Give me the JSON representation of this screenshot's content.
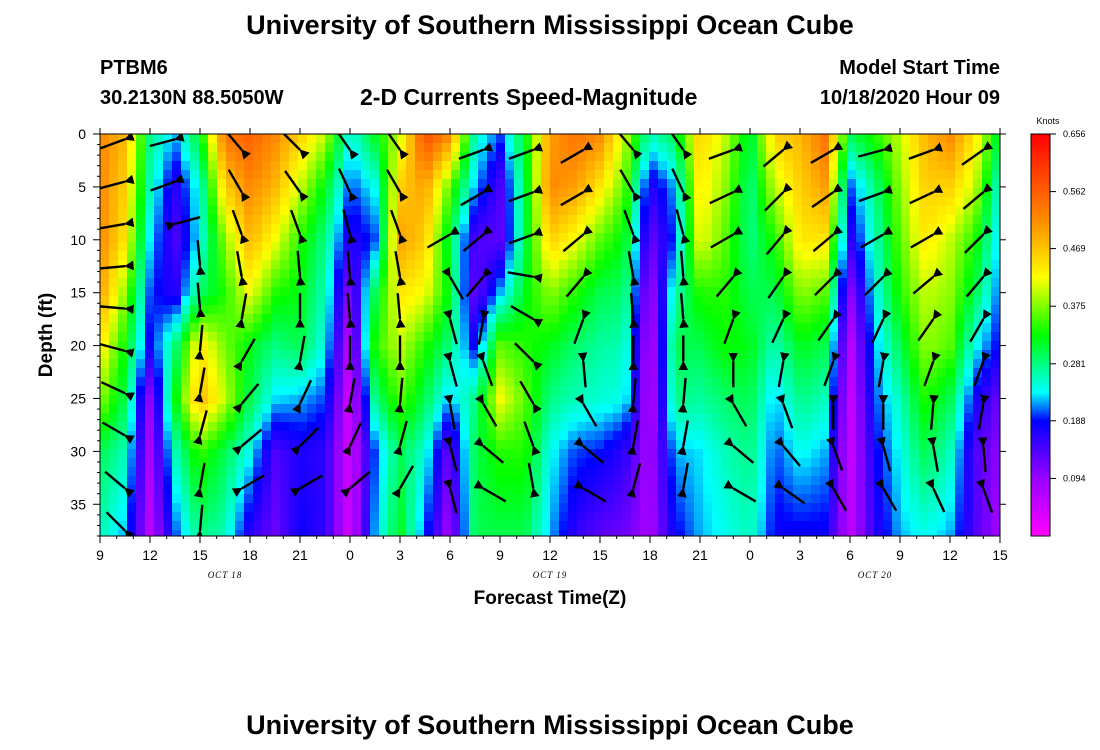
{
  "page": {
    "title_top": "University of Southern Mississippi Ocean Cube",
    "title_bottom": "University of Southern Mississippi Ocean Cube",
    "station": "PTBM6",
    "coords": "30.2130N 88.5050W",
    "plot_title": "2-D Currents Speed-Magnitude",
    "model_label": "Model Start Time",
    "model_time": "10/18/2020 Hour 09"
  },
  "chart_data": {
    "type": "heatmap",
    "title": "2-D Currents Speed-Magnitude",
    "xlabel": "Forecast Time(Z)",
    "ylabel": "Depth (ft)",
    "x_ticks": [
      "9",
      "12",
      "15",
      "18",
      "21",
      "0",
      "3",
      "6",
      "9",
      "12",
      "15",
      "18",
      "21",
      "0",
      "3",
      "6",
      "9",
      "12",
      "15"
    ],
    "x_range_hours": [
      0,
      54
    ],
    "date_labels": [
      {
        "text": "OCT 18",
        "hour": 7.5
      },
      {
        "text": "OCT 19",
        "hour": 27
      },
      {
        "text": "OCT 20",
        "hour": 46.5
      }
    ],
    "y_ticks": [
      0,
      5,
      10,
      15,
      20,
      25,
      30,
      35
    ],
    "ylim": [
      0,
      38
    ],
    "y_inverted": true,
    "colorbar": {
      "label": "Knots",
      "min": 0,
      "max": 0.656,
      "ticks": [
        0.656,
        0.562,
        0.469,
        0.375,
        0.281,
        0.188,
        0.094
      ]
    },
    "field_columns": [
      {
        "hour": 0.0,
        "speeds": [
          0.52,
          0.52,
          0.52,
          0.5,
          0.44,
          0.38,
          0.3,
          0.26
        ]
      },
      {
        "hour": 1.5,
        "speeds": [
          0.48,
          0.46,
          0.44,
          0.38,
          0.33,
          0.3,
          0.26,
          0.22
        ]
      },
      {
        "hour": 3.0,
        "speeds": [
          0.28,
          0.26,
          0.23,
          0.2,
          0.18,
          0.1,
          0.08,
          0.06
        ]
      },
      {
        "hour": 4.5,
        "speeds": [
          0.22,
          0.16,
          0.14,
          0.16,
          0.28,
          0.32,
          0.26,
          0.2
        ]
      },
      {
        "hour": 6.0,
        "speeds": [
          0.32,
          0.25,
          0.24,
          0.29,
          0.44,
          0.48,
          0.35,
          0.28
        ]
      },
      {
        "hour": 7.5,
        "speeds": [
          0.54,
          0.46,
          0.38,
          0.34,
          0.37,
          0.4,
          0.3,
          0.26
        ]
      },
      {
        "hour": 9.0,
        "speeds": [
          0.56,
          0.52,
          0.48,
          0.42,
          0.32,
          0.3,
          0.24,
          0.16
        ]
      },
      {
        "hour": 10.5,
        "speeds": [
          0.52,
          0.48,
          0.42,
          0.34,
          0.28,
          0.23,
          0.14,
          0.12
        ]
      },
      {
        "hour": 12.0,
        "speeds": [
          0.46,
          0.4,
          0.34,
          0.32,
          0.3,
          0.22,
          0.17,
          0.18
        ]
      },
      {
        "hour": 13.5,
        "speeds": [
          0.4,
          0.32,
          0.28,
          0.26,
          0.24,
          0.2,
          0.16,
          0.16
        ]
      },
      {
        "hour": 15.0,
        "speeds": [
          0.24,
          0.2,
          0.16,
          0.1,
          0.06,
          0.04,
          0.04,
          0.04
        ]
      },
      {
        "hour": 16.5,
        "speeds": [
          0.32,
          0.24,
          0.2,
          0.3,
          0.34,
          0.28,
          0.2,
          0.22
        ]
      },
      {
        "hour": 18.0,
        "speeds": [
          0.4,
          0.46,
          0.5,
          0.44,
          0.4,
          0.36,
          0.3,
          0.32
        ]
      },
      {
        "hour": 19.5,
        "speeds": [
          0.58,
          0.5,
          0.46,
          0.42,
          0.34,
          0.3,
          0.25,
          0.2
        ]
      },
      {
        "hour": 21.0,
        "speeds": [
          0.52,
          0.36,
          0.3,
          0.32,
          0.28,
          0.22,
          0.12,
          0.08
        ]
      },
      {
        "hour": 22.5,
        "speeds": [
          0.26,
          0.22,
          0.14,
          0.12,
          0.18,
          0.28,
          0.3,
          0.3
        ]
      },
      {
        "hour": 24.0,
        "speeds": [
          0.2,
          0.14,
          0.13,
          0.22,
          0.36,
          0.42,
          0.34,
          0.3
        ]
      },
      {
        "hour": 25.5,
        "speeds": [
          0.32,
          0.3,
          0.3,
          0.32,
          0.34,
          0.36,
          0.34,
          0.3
        ]
      },
      {
        "hour": 27.0,
        "speeds": [
          0.5,
          0.52,
          0.46,
          0.38,
          0.32,
          0.28,
          0.24,
          0.22
        ]
      },
      {
        "hour": 28.5,
        "speeds": [
          0.54,
          0.5,
          0.42,
          0.34,
          0.29,
          0.26,
          0.2,
          0.16
        ]
      },
      {
        "hour": 30.0,
        "speeds": [
          0.52,
          0.44,
          0.36,
          0.3,
          0.27,
          0.25,
          0.19,
          0.13
        ]
      },
      {
        "hour": 31.5,
        "speeds": [
          0.4,
          0.36,
          0.32,
          0.29,
          0.26,
          0.24,
          0.16,
          0.12
        ]
      },
      {
        "hour": 33.0,
        "speeds": [
          0.26,
          0.16,
          0.12,
          0.08,
          0.06,
          0.06,
          0.08,
          0.08
        ]
      },
      {
        "hour": 34.5,
        "speeds": [
          0.3,
          0.22,
          0.2,
          0.26,
          0.3,
          0.28,
          0.22,
          0.18
        ]
      },
      {
        "hour": 36.0,
        "speeds": [
          0.46,
          0.44,
          0.42,
          0.34,
          0.3,
          0.27,
          0.23,
          0.22
        ]
      },
      {
        "hour": 37.5,
        "speeds": [
          0.4,
          0.38,
          0.36,
          0.34,
          0.33,
          0.29,
          0.26,
          0.24
        ]
      },
      {
        "hour": 39.0,
        "speeds": [
          0.3,
          0.28,
          0.28,
          0.3,
          0.32,
          0.3,
          0.28,
          0.26
        ]
      },
      {
        "hour": 40.5,
        "speeds": [
          0.46,
          0.4,
          0.34,
          0.3,
          0.26,
          0.22,
          0.2,
          0.18
        ]
      },
      {
        "hour": 42.0,
        "speeds": [
          0.48,
          0.46,
          0.44,
          0.38,
          0.32,
          0.28,
          0.24,
          0.18
        ]
      },
      {
        "hour": 43.5,
        "speeds": [
          0.54,
          0.5,
          0.44,
          0.36,
          0.3,
          0.26,
          0.22,
          0.18
        ]
      },
      {
        "hour": 45.0,
        "speeds": [
          0.3,
          0.2,
          0.16,
          0.1,
          0.06,
          0.05,
          0.05,
          0.06
        ]
      },
      {
        "hour": 46.5,
        "speeds": [
          0.34,
          0.28,
          0.26,
          0.24,
          0.22,
          0.2,
          0.18,
          0.16
        ]
      },
      {
        "hour": 48.0,
        "speeds": [
          0.4,
          0.38,
          0.36,
          0.34,
          0.3,
          0.26,
          0.24,
          0.22
        ]
      },
      {
        "hour": 49.5,
        "speeds": [
          0.48,
          0.46,
          0.44,
          0.4,
          0.38,
          0.34,
          0.3,
          0.24
        ]
      },
      {
        "hour": 51.0,
        "speeds": [
          0.52,
          0.46,
          0.4,
          0.38,
          0.36,
          0.3,
          0.26,
          0.22
        ]
      },
      {
        "hour": 52.5,
        "speeds": [
          0.44,
          0.4,
          0.34,
          0.3,
          0.24,
          0.18,
          0.14,
          0.14
        ]
      },
      {
        "hour": 54.0,
        "speeds": [
          0.3,
          0.24,
          0.22,
          0.2,
          0.18,
          0.12,
          0.1,
          0.08
        ]
      }
    ],
    "field_depths": [
      0,
      5,
      10,
      15,
      20,
      25,
      30,
      38
    ],
    "vector_columns": [
      {
        "hour": 1.5,
        "depths": [
          0.5,
          4.5,
          8.5,
          12.5,
          16.5,
          20.5,
          24.5,
          28.5,
          33.5,
          37.5
        ],
        "dirs": [
          200,
          195,
          190,
          185,
          175,
          165,
          155,
          150,
          140,
          135
        ]
      },
      {
        "hour": 4.5,
        "depths": [
          0.5,
          4.5,
          8.5
        ],
        "dirs": [
          195,
          200,
          15
        ]
      },
      {
        "hour": 6.0,
        "depths": [
          12.5,
          16.5,
          20.5,
          24.5,
          28.5,
          33.5,
          37.5
        ],
        "dirs": [
          95,
          95,
          85,
          80,
          75,
          80,
          85
        ]
      },
      {
        "hour": 8.5,
        "depths": [
          1.5,
          5.5,
          9.5,
          13.5,
          17.5,
          21.5,
          25.5,
          29.5,
          33.5
        ],
        "dirs": [
          130,
          120,
          110,
          100,
          80,
          60,
          50,
          40,
          30
        ]
      },
      {
        "hour": 12.0,
        "depths": [
          1.5,
          5.5,
          9.5,
          13.5,
          17.5,
          21.5,
          25.5,
          29.5,
          33.5
        ],
        "dirs": [
          135,
          125,
          110,
          95,
          90,
          80,
          65,
          45,
          30
        ]
      },
      {
        "hour": 15.0,
        "depths": [
          1.5,
          5.5,
          9.5,
          13.5,
          17.5,
          21.5,
          25.5,
          29.5,
          33.5
        ],
        "dirs": [
          125,
          115,
          105,
          95,
          95,
          90,
          80,
          65,
          40
        ]
      },
      {
        "hour": 18.0,
        "depths": [
          1.5,
          5.5,
          9.5,
          13.5,
          17.5,
          21.5,
          25.5,
          29.5,
          33.5
        ],
        "dirs": [
          125,
          120,
          110,
          100,
          95,
          90,
          85,
          75,
          60
        ]
      },
      {
        "hour": 21.0,
        "depths": [
          9.5,
          13.5,
          17.5,
          21.5,
          25.5,
          29.5,
          33.5
        ],
        "dirs": [
          210,
          -60,
          -75,
          -75,
          -80,
          -75,
          -75
        ]
      },
      {
        "hour": 23.0,
        "depths": [
          1.5,
          5.5,
          9.5,
          13.5,
          17.5,
          21.5,
          25.5,
          29.5,
          33.5
        ],
        "dirs": [
          200,
          210,
          220,
          230,
          260,
          290,
          300,
          320,
          330
        ]
      },
      {
        "hour": 26.0,
        "depths": [
          1.5,
          5.5,
          9.5,
          13.5,
          17.5,
          21.5,
          25.5,
          29.5,
          33.5
        ],
        "dirs": [
          200,
          200,
          200,
          170,
          150,
          135,
          120,
          110,
          100
        ]
      },
      {
        "hour": 29.0,
        "depths": [
          1.5,
          5.5,
          9.5,
          13.5,
          17.5,
          21.5,
          25.5,
          29.5,
          33.5
        ],
        "dirs": [
          210,
          210,
          220,
          230,
          250,
          275,
          300,
          320,
          330
        ]
      },
      {
        "hour": 32.0,
        "depths": [
          1.5,
          5.5,
          9.5,
          13.5,
          17.5,
          21.5,
          25.5,
          29.5,
          33.5
        ],
        "dirs": [
          130,
          120,
          110,
          100,
          95,
          90,
          85,
          80,
          75
        ]
      },
      {
        "hour": 35.0,
        "depths": [
          1.5,
          5.5,
          9.5,
          13.5,
          17.5,
          21.5,
          25.5,
          29.5,
          33.5
        ],
        "dirs": [
          125,
          115,
          105,
          95,
          95,
          90,
          85,
          80,
          80
        ]
      },
      {
        "hour": 38.0,
        "depths": [
          1.5,
          5.5,
          9.5,
          13.5,
          17.5,
          21.5,
          25.5,
          29.5,
          33.5
        ],
        "dirs": [
          200,
          205,
          210,
          230,
          250,
          270,
          300,
          320,
          330
        ]
      },
      {
        "hour": 41.0,
        "depths": [
          1.5,
          5.5,
          9.5,
          13.5,
          17.5,
          21.5,
          25.5,
          29.5,
          33.5
        ],
        "dirs": [
          220,
          225,
          230,
          235,
          245,
          260,
          290,
          310,
          325
        ]
      },
      {
        "hour": 44.0,
        "depths": [
          1.5,
          5.5,
          9.5,
          13.5,
          17.5,
          21.5,
          25.5,
          29.5,
          33.5
        ],
        "dirs": [
          210,
          215,
          220,
          225,
          235,
          250,
          270,
          290,
          300
        ]
      },
      {
        "hour": 47.0,
        "depths": [
          1.5,
          5.5,
          9.5,
          13.5,
          17.5,
          21.5,
          25.5,
          29.5,
          33.5
        ],
        "dirs": [
          195,
          200,
          210,
          225,
          245,
          260,
          270,
          285,
          300
        ]
      },
      {
        "hour": 50.0,
        "depths": [
          1.5,
          5.5,
          9.5,
          13.5,
          17.5,
          21.5,
          25.5,
          29.5,
          33.5
        ],
        "dirs": [
          200,
          205,
          210,
          220,
          235,
          250,
          265,
          280,
          295
        ]
      },
      {
        "hour": 53.0,
        "depths": [
          1.5,
          5.5,
          9.5,
          13.5,
          17.5,
          21.5,
          25.5,
          29.5,
          33.5
        ],
        "dirs": [
          215,
          220,
          225,
          230,
          240,
          250,
          260,
          275,
          290
        ]
      }
    ]
  }
}
